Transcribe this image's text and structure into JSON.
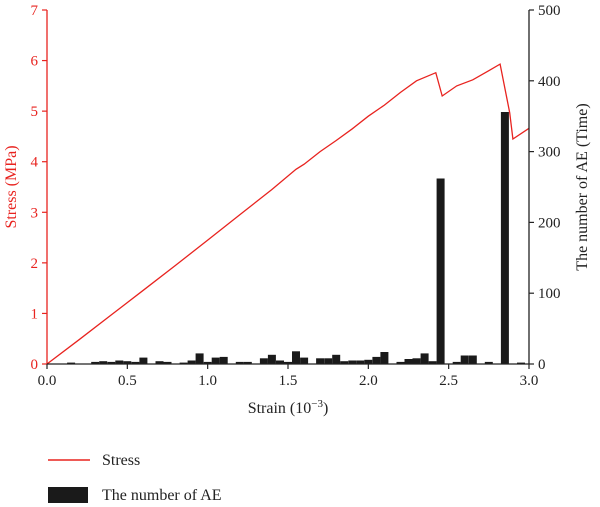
{
  "chart_data": {
    "type": "line+bar",
    "x": {
      "label": "Strain (10",
      "label_exp": "−3",
      "label_close": ")",
      "range": [
        0,
        3.0
      ],
      "ticks": [
        "0.0",
        "0.5",
        "1.0",
        "1.5",
        "2.0",
        "2.5",
        "3.0"
      ]
    },
    "y_left": {
      "label": "Stress (MPa)",
      "range": [
        0,
        7
      ],
      "ticks": [
        "0",
        "1",
        "2",
        "3",
        "4",
        "5",
        "6",
        "7"
      ],
      "color": "#e8231f"
    },
    "y_right": {
      "label": "The number of AE (Time)",
      "range": [
        0,
        500
      ],
      "ticks": [
        "0",
        "100",
        "200",
        "300",
        "400",
        "500"
      ],
      "color": "#222222"
    },
    "series": [
      {
        "name": "Stress",
        "kind": "line",
        "axis": "left",
        "color": "#e8231f",
        "points": [
          [
            0,
            0
          ],
          [
            0.2,
            0.48
          ],
          [
            0.4,
            0.97
          ],
          [
            0.6,
            1.46
          ],
          [
            0.8,
            1.95
          ],
          [
            1.0,
            2.45
          ],
          [
            1.2,
            2.95
          ],
          [
            1.4,
            3.45
          ],
          [
            1.55,
            3.85
          ],
          [
            1.6,
            3.95
          ],
          [
            1.7,
            4.2
          ],
          [
            1.8,
            4.42
          ],
          [
            1.9,
            4.65
          ],
          [
            2.0,
            4.9
          ],
          [
            2.1,
            5.12
          ],
          [
            2.2,
            5.37
          ],
          [
            2.3,
            5.6
          ],
          [
            2.42,
            5.76
          ],
          [
            2.46,
            5.3
          ],
          [
            2.55,
            5.5
          ],
          [
            2.65,
            5.62
          ],
          [
            2.75,
            5.8
          ],
          [
            2.82,
            5.93
          ],
          [
            2.88,
            4.97
          ],
          [
            2.9,
            4.45
          ],
          [
            3.0,
            4.66
          ]
        ]
      },
      {
        "name": "The number of AE",
        "kind": "bar",
        "axis": "right",
        "color": "#1a1a1a",
        "points": [
          [
            0.15,
            2
          ],
          [
            0.3,
            3
          ],
          [
            0.35,
            4
          ],
          [
            0.4,
            3
          ],
          [
            0.45,
            5
          ],
          [
            0.5,
            4
          ],
          [
            0.55,
            3
          ],
          [
            0.6,
            9
          ],
          [
            0.7,
            4
          ],
          [
            0.75,
            3
          ],
          [
            0.85,
            2
          ],
          [
            0.9,
            5
          ],
          [
            0.95,
            15
          ],
          [
            1.0,
            3
          ],
          [
            1.05,
            9
          ],
          [
            1.1,
            10
          ],
          [
            1.2,
            3
          ],
          [
            1.25,
            3
          ],
          [
            1.35,
            8
          ],
          [
            1.4,
            13
          ],
          [
            1.45,
            5
          ],
          [
            1.5,
            3
          ],
          [
            1.55,
            18
          ],
          [
            1.6,
            9
          ],
          [
            1.7,
            8
          ],
          [
            1.75,
            8
          ],
          [
            1.8,
            13
          ],
          [
            1.85,
            4
          ],
          [
            1.9,
            5
          ],
          [
            1.95,
            5
          ],
          [
            2.0,
            6
          ],
          [
            2.05,
            10
          ],
          [
            2.1,
            17
          ],
          [
            2.2,
            3
          ],
          [
            2.25,
            7
          ],
          [
            2.3,
            8
          ],
          [
            2.35,
            15
          ],
          [
            2.4,
            4
          ],
          [
            2.45,
            262
          ],
          [
            2.55,
            3
          ],
          [
            2.6,
            12
          ],
          [
            2.65,
            12
          ],
          [
            2.75,
            3
          ],
          [
            2.85,
            356
          ],
          [
            2.95,
            2
          ]
        ]
      }
    ],
    "legend_position": "bottom-left",
    "grid": false
  }
}
